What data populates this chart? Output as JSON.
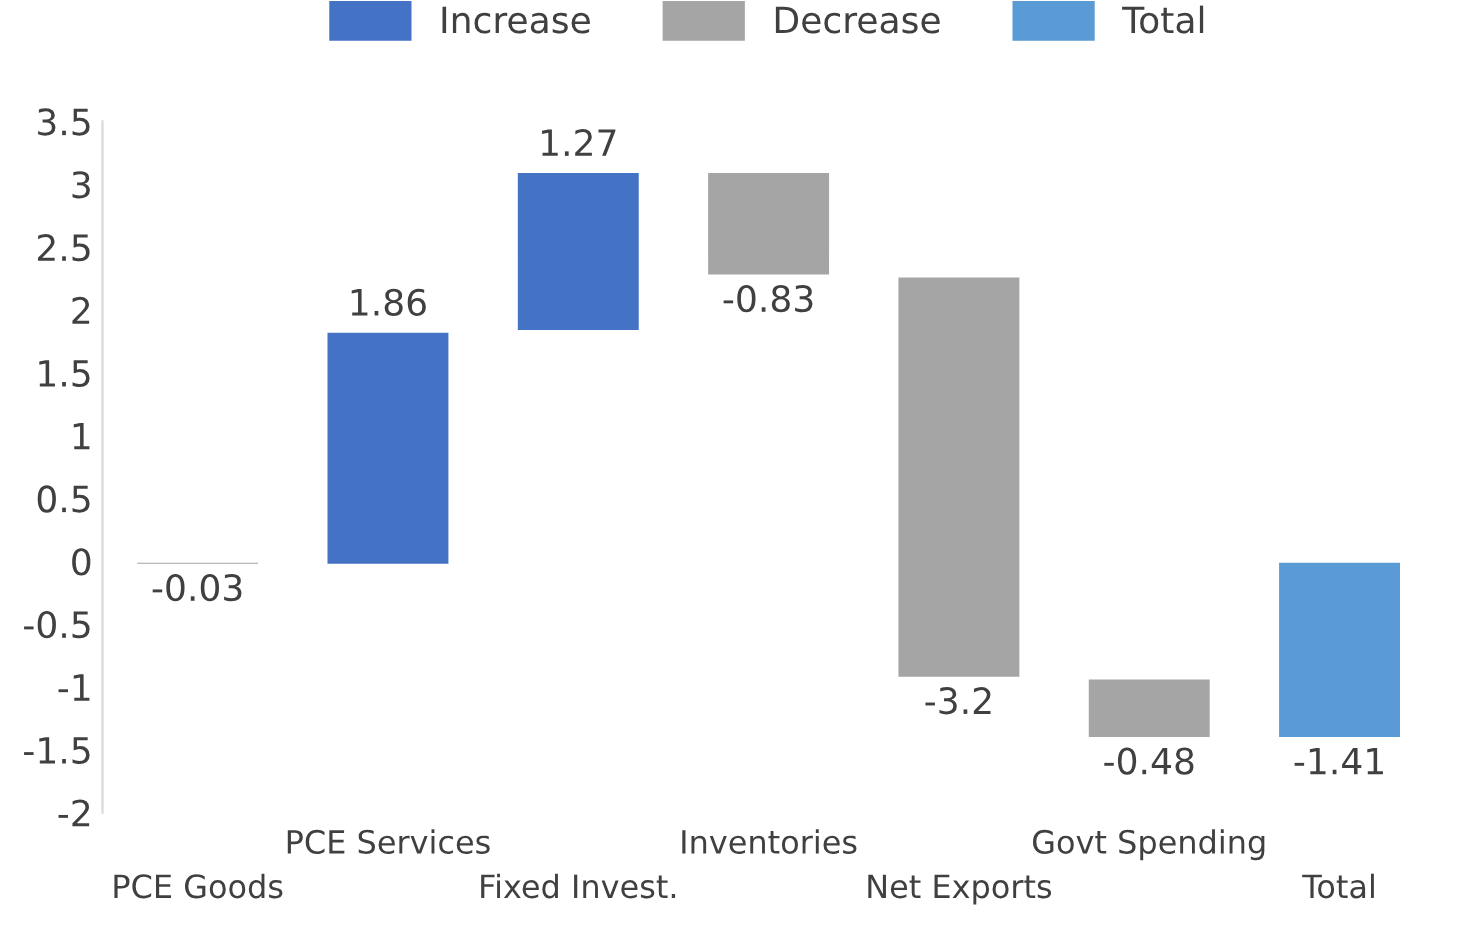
{
  "chart_data": {
    "type": "bar",
    "categories": [
      "PCE Goods",
      "PCE Services",
      "Fixed Invest.",
      "Inventories",
      "Net Exports",
      "Govt Spending",
      "Total"
    ],
    "series": [
      {
        "name": "Increase",
        "color": "#4472c4",
        "values": [
          null,
          1.86,
          1.27,
          null,
          null,
          null,
          null
        ],
        "base": [
          null,
          -0.03,
          1.83,
          null,
          null,
          null,
          null
        ]
      },
      {
        "name": "Decrease",
        "color": "#a5a5a5",
        "values": [
          -0.03,
          null,
          null,
          -0.83,
          -3.2,
          -0.48,
          null
        ],
        "base": [
          0,
          null,
          null,
          3.1,
          2.27,
          -0.93,
          null
        ]
      },
      {
        "name": "Total",
        "color": "#5b9bd5",
        "values": [
          null,
          null,
          null,
          null,
          null,
          null,
          -1.41
        ],
        "base": [
          null,
          null,
          null,
          null,
          null,
          null,
          0
        ]
      }
    ],
    "ylim": [
      -2,
      3.5
    ],
    "yticks": [
      -2,
      -1.5,
      -1,
      -0.5,
      0,
      0.5,
      1,
      1.5,
      2,
      2.5,
      3,
      3.5
    ],
    "data_labels": true,
    "grid": false,
    "legend": "top"
  }
}
